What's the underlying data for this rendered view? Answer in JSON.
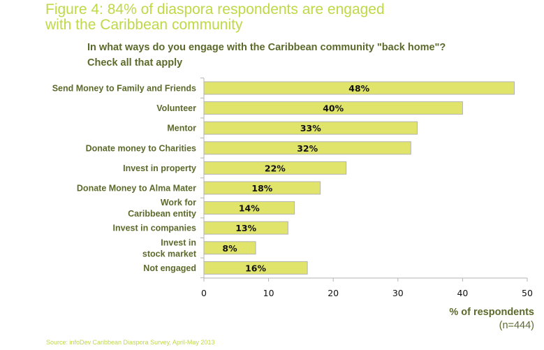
{
  "figure_title": [
    "Figure 4: 84% of diaspora respondents are engaged",
    "with the Caribbean community"
  ],
  "chart_data": {
    "type": "bar",
    "orientation": "horizontal",
    "title": [
      "In what ways do you engage with the Caribbean community \"back home\"?",
      "Check all that apply"
    ],
    "categories": [
      [
        "Send Money to Family and Friends"
      ],
      [
        "Volunteer"
      ],
      [
        "Mentor"
      ],
      [
        "Donate money to Charities"
      ],
      [
        "Invest in property"
      ],
      [
        "Donate Money to Alma Mater"
      ],
      [
        "Work for",
        "Caribbean entity"
      ],
      [
        "Invest in companies"
      ],
      [
        "Invest in",
        "stock market"
      ],
      [
        "Not engaged"
      ]
    ],
    "values": [
      48,
      40,
      33,
      32,
      22,
      18,
      14,
      13,
      8,
      16
    ],
    "data_labels": [
      "48%",
      "40%",
      "33%",
      "32%",
      "22%",
      "18%",
      "14%",
      "13%",
      "8%",
      "16%"
    ],
    "xlabel": "% of respondents",
    "xlabel_note": "(n=444)",
    "xlim": [
      0,
      50
    ],
    "xticks": [
      0,
      10,
      20,
      30,
      40,
      50
    ],
    "grid": false,
    "bar_color": "#e0e46b",
    "bar_border": "#b3b3b3"
  },
  "source": "Source: infoDev Caribbean Diaspora Survey, April-May 2013"
}
